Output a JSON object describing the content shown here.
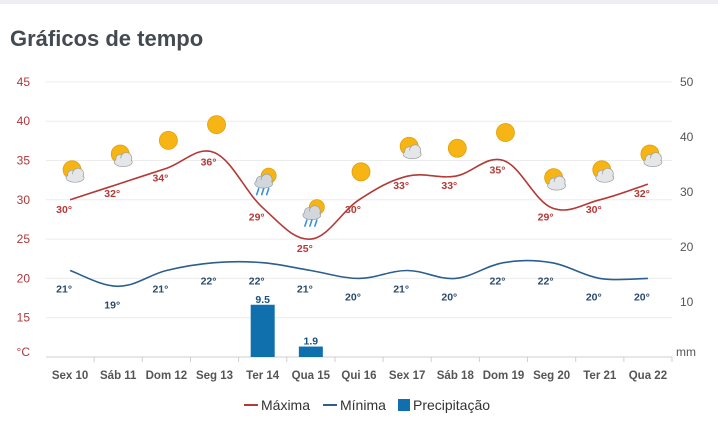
{
  "page_title": "Gráficos de tempo",
  "colors": {
    "max": "#b23a37",
    "min": "#2c5f8e",
    "precip": "#0f70ad",
    "grid": "#ececec",
    "sun": "#f6b514",
    "cloud": "#e4e6e8",
    "rain": "#3a8fd6"
  },
  "chart_data": {
    "type": "line",
    "categories": [
      "Sex 10",
      "Sáb 11",
      "Dom 12",
      "Seg 13",
      "Ter 14",
      "Qua 15",
      "Qui 16",
      "Sex 17",
      "Sáb 18",
      "Dom 19",
      "Seg 20",
      "Ter 21",
      "Qua 22"
    ],
    "series": [
      {
        "name": "Máxima",
        "values": [
          30,
          32,
          34,
          36,
          29,
          25,
          30,
          33,
          33,
          35,
          29,
          30,
          32
        ],
        "axis": "left"
      },
      {
        "name": "Mínima",
        "values": [
          21,
          19,
          21,
          22,
          22,
          21,
          20,
          21,
          20,
          22,
          22,
          20,
          20
        ],
        "axis": "left"
      },
      {
        "name": "Precipitação",
        "type": "bar",
        "values": [
          null,
          null,
          null,
          null,
          9.5,
          1.9,
          null,
          null,
          null,
          null,
          null,
          null,
          null
        ],
        "axis": "right"
      }
    ],
    "y_left": {
      "unit": "°C",
      "ticks": [
        15,
        20,
        25,
        30,
        35,
        40,
        45
      ],
      "range": [
        10,
        45
      ]
    },
    "y_right": {
      "unit": "mm",
      "ticks": [
        10,
        20,
        30,
        40,
        50
      ],
      "range": [
        0,
        50
      ]
    },
    "weather_icons": [
      "sun-cloud",
      "sun-cloud",
      "sun",
      "sun",
      "sun-cloud-rain",
      "sun-cloud-rain",
      "sun",
      "sun-cloud",
      "sun",
      "sun",
      "sun-cloud",
      "sun-cloud",
      "sun-cloud"
    ],
    "grid": true,
    "legend_position": "bottom-center"
  }
}
